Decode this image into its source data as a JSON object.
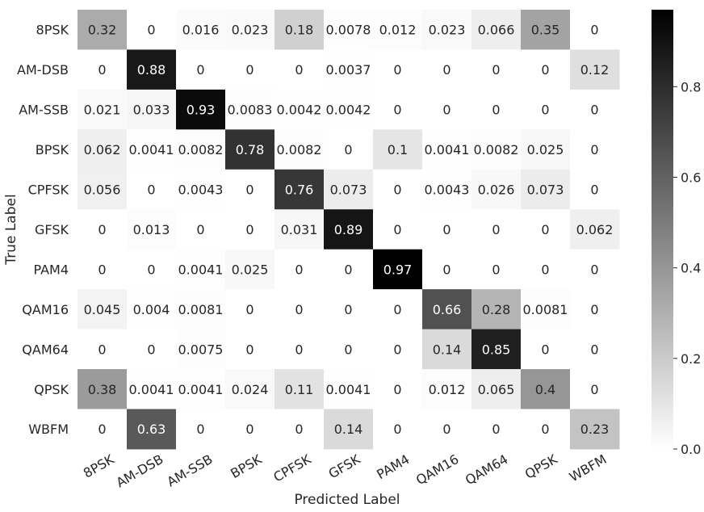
{
  "chart_data": {
    "type": "heatmap",
    "title": "",
    "xlabel": "Predicted Label",
    "ylabel": "True Label",
    "x_categories": [
      "8PSK",
      "AM-DSB",
      "AM-SSB",
      "BPSK",
      "CPFSK",
      "GFSK",
      "PAM4",
      "QAM16",
      "QAM64",
      "QPSK",
      "WBFM"
    ],
    "y_categories": [
      "8PSK",
      "AM-DSB",
      "AM-SSB",
      "BPSK",
      "CPFSK",
      "GFSK",
      "PAM4",
      "QAM16",
      "QAM64",
      "QPSK",
      "WBFM"
    ],
    "values": [
      [
        0.32,
        0,
        0.016,
        0.023,
        0.18,
        0.0078,
        0.012,
        0.023,
        0.066,
        0.35,
        0
      ],
      [
        0,
        0.88,
        0,
        0,
        0,
        0.0037,
        0,
        0,
        0,
        0,
        0.12
      ],
      [
        0.021,
        0.033,
        0.93,
        0.0083,
        0.0042,
        0.0042,
        0,
        0,
        0,
        0,
        0
      ],
      [
        0.062,
        0.0041,
        0.0082,
        0.78,
        0.0082,
        0,
        0.1,
        0.0041,
        0.0082,
        0.025,
        0
      ],
      [
        0.056,
        0,
        0.0043,
        0,
        0.76,
        0.073,
        0,
        0.0043,
        0.026,
        0.073,
        0
      ],
      [
        0,
        0.013,
        0,
        0,
        0.031,
        0.89,
        0,
        0,
        0,
        0,
        0.062
      ],
      [
        0,
        0,
        0.0041,
        0.025,
        0,
        0,
        0.97,
        0,
        0,
        0,
        0
      ],
      [
        0.045,
        0.004,
        0.0081,
        0,
        0,
        0,
        0,
        0.66,
        0.28,
        0.0081,
        0
      ],
      [
        0,
        0,
        0.0075,
        0,
        0,
        0,
        0,
        0.14,
        0.85,
        0,
        0
      ],
      [
        0.38,
        0.0041,
        0.0041,
        0.024,
        0.11,
        0.0041,
        0,
        0.012,
        0.065,
        0.4,
        0
      ],
      [
        0,
        0.63,
        0,
        0,
        0,
        0.14,
        0,
        0,
        0,
        0,
        0.23
      ]
    ],
    "colormap": "greys",
    "color_range": [
      0,
      0.97
    ],
    "colorbar_ticks": [
      "0.0",
      "0.2",
      "0.4",
      "0.6",
      "0.8"
    ],
    "colorbar_tick_values": [
      0,
      0.2,
      0.4,
      0.6,
      0.8
    ],
    "annotations": true,
    "grid": false,
    "colors": {
      "min": "#ffffff",
      "max": "#000000"
    }
  }
}
